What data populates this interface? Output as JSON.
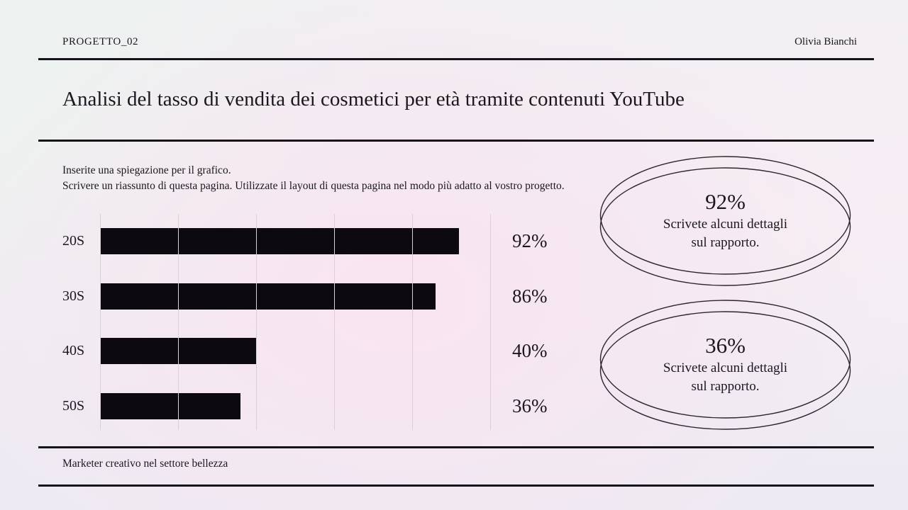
{
  "slide": {
    "header": {
      "project_label": "PROGETTO_02",
      "author": "Olivia Bianchi"
    },
    "title": "Analisi del tasso di vendita dei cosmetici per età tramite contenuti YouTube",
    "description_line1": "Inserite una spiegazione per il grafico.",
    "description_line2": "Scrivere un riassunto di questa pagina. Utilizzate il layout di questa pagina nel modo più adatto al vostro progetto.",
    "footer_role": "Marketer creativo nel settore bellezza"
  },
  "chart_data": {
    "type": "bar",
    "orientation": "horizontal",
    "title": "",
    "xlabel": "",
    "ylabel": "",
    "categories": [
      "20S",
      "30S",
      "40S",
      "50S"
    ],
    "values": [
      92,
      86,
      40,
      36
    ],
    "value_labels": [
      "92%",
      "86%",
      "40%",
      "36%"
    ],
    "xlim": [
      0,
      100
    ],
    "gridline_positions": [
      0,
      20,
      40,
      60,
      80,
      100
    ],
    "grid": true,
    "legend": false,
    "bar_color": "#0c0a0e"
  },
  "callouts": [
    {
      "value": "92%",
      "detail_line1": "Scrivete alcuni dettagli",
      "detail_line2": "sul rapporto."
    },
    {
      "value": "36%",
      "detail_line1": "Scrivete alcuni dettagli",
      "detail_line2": "sul rapporto."
    }
  ],
  "colors": {
    "text": "#1b1720",
    "rule": "#15121a",
    "bar": "#0c0a0e",
    "gridline": "#d8d1da",
    "ellipse_stroke": "#2b2630"
  }
}
